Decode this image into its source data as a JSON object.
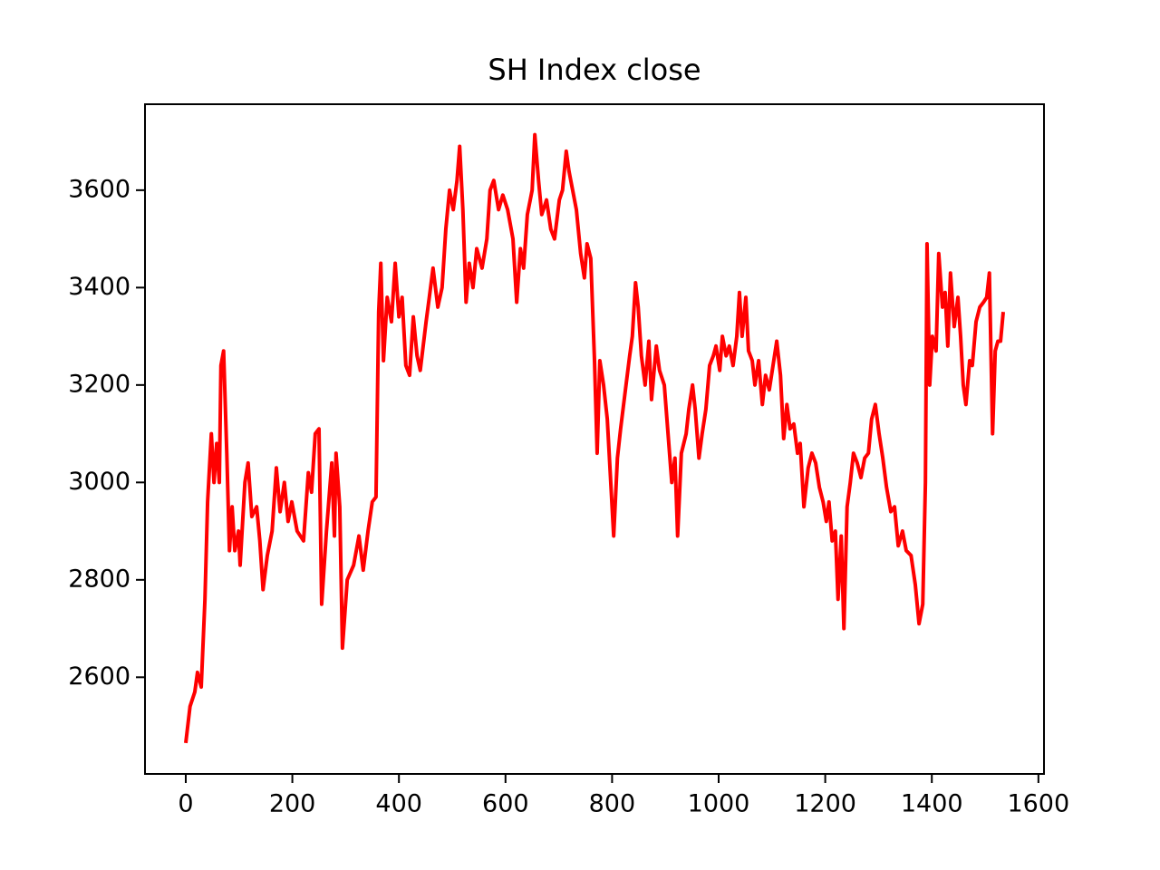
{
  "chart_data": {
    "type": "line",
    "title": "SH Index close",
    "color": "#ff0000",
    "x": [
      0,
      8,
      17,
      22,
      29,
      36,
      41,
      48,
      53,
      58,
      63,
      66,
      71,
      77,
      82,
      87,
      92,
      99,
      102,
      111,
      117,
      124,
      133,
      139,
      145,
      153,
      162,
      170,
      177,
      185,
      192,
      199,
      209,
      221,
      230,
      236,
      243,
      250,
      255,
      264,
      274,
      279,
      282,
      289,
      294,
      303,
      315,
      325,
      333,
      342,
      350,
      357,
      362,
      366,
      371,
      378,
      386,
      393,
      400,
      406,
      413,
      420,
      427,
      434,
      440,
      451,
      457,
      464,
      473,
      481,
      488,
      495,
      502,
      509,
      514,
      520,
      526,
      532,
      539,
      546,
      556,
      565,
      571,
      578,
      587,
      595,
      604,
      614,
      621,
      628,
      634,
      641,
      650,
      655,
      662,
      668,
      677,
      685,
      692,
      701,
      707,
      714,
      719,
      726,
      733,
      741,
      748,
      753,
      760,
      767,
      772,
      777,
      784,
      791,
      798,
      803,
      810,
      816,
      825,
      833,
      838,
      844,
      849,
      855,
      862,
      869,
      874,
      883,
      889,
      898,
      905,
      912,
      918,
      923,
      930,
      939,
      944,
      951,
      956,
      963,
      969,
      976,
      983,
      990,
      995,
      1002,
      1007,
      1014,
      1020,
      1027,
      1034,
      1039,
      1044,
      1051,
      1056,
      1063,
      1068,
      1075,
      1082,
      1088,
      1095,
      1102,
      1109,
      1116,
      1122,
      1128,
      1134,
      1141,
      1148,
      1153,
      1160,
      1168,
      1175,
      1182,
      1189,
      1196,
      1202,
      1207,
      1213,
      1219,
      1224,
      1230,
      1235,
      1241,
      1247,
      1253,
      1260,
      1267,
      1274,
      1281,
      1287,
      1294,
      1301,
      1308,
      1315,
      1323,
      1330,
      1337,
      1345,
      1352,
      1361,
      1369,
      1376,
      1383,
      1388,
      1391,
      1396,
      1401,
      1408,
      1413,
      1420,
      1425,
      1430,
      1435,
      1442,
      1449,
      1454,
      1459,
      1464,
      1471,
      1476,
      1483,
      1490,
      1497,
      1503,
      1508,
      1514,
      1519,
      1524,
      1529,
      1534
    ],
    "values": [
      2465,
      2540,
      2570,
      2610,
      2580,
      2760,
      2960,
      3100,
      3000,
      3080,
      3000,
      3240,
      3270,
      3060,
      2860,
      2950,
      2860,
      2900,
      2830,
      3000,
      3040,
      2930,
      2950,
      2880,
      2780,
      2850,
      2900,
      3030,
      2940,
      3000,
      2920,
      2960,
      2900,
      2880,
      3020,
      2980,
      3100,
      3110,
      2750,
      2900,
      3040,
      2890,
      3060,
      2950,
      2660,
      2800,
      2830,
      2890,
      2820,
      2900,
      2960,
      2970,
      3350,
      3450,
      3250,
      3380,
      3330,
      3450,
      3340,
      3380,
      3240,
      3220,
      3340,
      3260,
      3230,
      3330,
      3380,
      3440,
      3360,
      3400,
      3520,
      3600,
      3560,
      3620,
      3690,
      3560,
      3370,
      3450,
      3400,
      3480,
      3440,
      3500,
      3600,
      3620,
      3560,
      3590,
      3560,
      3500,
      3370,
      3480,
      3440,
      3550,
      3600,
      3714,
      3620,
      3550,
      3580,
      3520,
      3500,
      3580,
      3600,
      3680,
      3640,
      3600,
      3560,
      3470,
      3420,
      3490,
      3460,
      3250,
      3060,
      3250,
      3200,
      3130,
      2990,
      2890,
      3050,
      3110,
      3190,
      3260,
      3300,
      3410,
      3360,
      3260,
      3200,
      3290,
      3170,
      3280,
      3230,
      3200,
      3100,
      3000,
      3050,
      2890,
      3060,
      3100,
      3150,
      3200,
      3150,
      3050,
      3100,
      3150,
      3240,
      3260,
      3280,
      3230,
      3300,
      3260,
      3280,
      3240,
      3300,
      3390,
      3300,
      3380,
      3270,
      3250,
      3200,
      3250,
      3160,
      3220,
      3190,
      3240,
      3290,
      3220,
      3090,
      3160,
      3110,
      3120,
      3060,
      3080,
      2950,
      3030,
      3060,
      3040,
      2990,
      2960,
      2920,
      2960,
      2880,
      2900,
      2760,
      2890,
      2700,
      2950,
      3000,
      3060,
      3040,
      3010,
      3050,
      3060,
      3130,
      3160,
      3100,
      3050,
      2990,
      2940,
      2950,
      2870,
      2900,
      2860,
      2850,
      2790,
      2710,
      2750,
      3000,
      3490,
      3200,
      3300,
      3270,
      3470,
      3360,
      3390,
      3280,
      3430,
      3320,
      3380,
      3300,
      3200,
      3160,
      3250,
      3240,
      3330,
      3360,
      3370,
      3380,
      3430,
      3100,
      3270,
      3290,
      3290,
      3350
    ],
    "xlim": [
      -76.5,
      1610.5
    ],
    "ylim": [
      2401.5,
      3776.5
    ],
    "xticks": [
      0,
      200,
      400,
      600,
      800,
      1000,
      1200,
      1400,
      1600
    ],
    "yticks": [
      2600,
      2800,
      3000,
      3200,
      3400,
      3600
    ],
    "grid": false
  }
}
